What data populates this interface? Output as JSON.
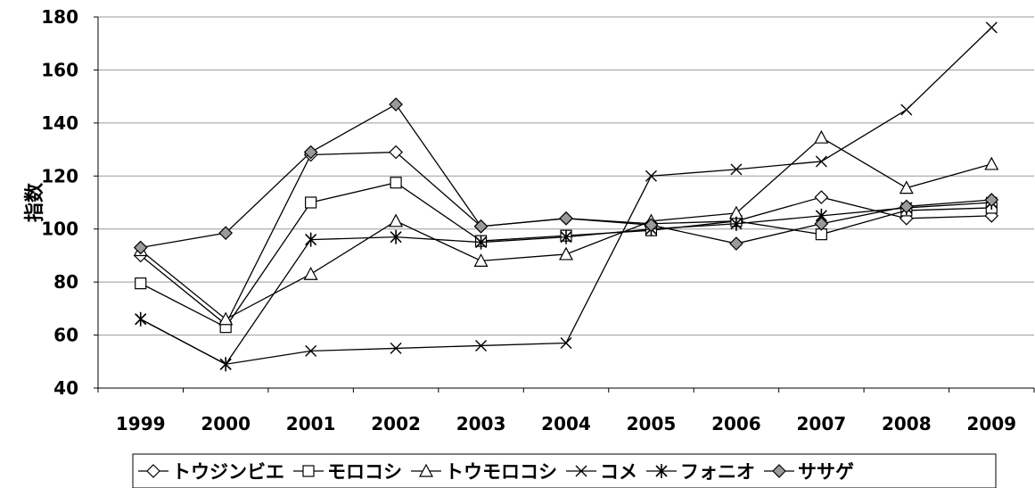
{
  "chart_data": {
    "type": "line",
    "ylabel": "指数",
    "ylim": [
      40,
      180
    ],
    "yticks": [
      40,
      60,
      80,
      100,
      120,
      140,
      160,
      180
    ],
    "categories": [
      "1999",
      "2000",
      "2001",
      "2002",
      "2003",
      "2004",
      "2005",
      "2006",
      "2007",
      "2008",
      "2009"
    ],
    "grid": "horizontal",
    "legend_position": "bottom",
    "series": [
      {
        "name": "トウジンビエ",
        "marker": "diamond-open",
        "values": [
          90,
          64,
          128,
          129,
          101,
          104,
          102,
          103,
          112,
          104,
          105
        ]
      },
      {
        "name": "モロコシ",
        "marker": "square-open",
        "values": [
          79.5,
          63,
          110,
          117.5,
          95.5,
          97.5,
          99.5,
          103,
          98,
          107,
          108
        ]
      },
      {
        "name": "トウモロコシ",
        "marker": "triangle-open",
        "values": [
          92,
          66,
          83,
          103,
          88,
          90.5,
          103,
          106,
          134.5,
          115.5,
          124.5
        ]
      },
      {
        "name": "コメ",
        "marker": "x",
        "values": [
          66,
          49,
          54,
          55,
          56,
          57,
          120,
          122.5,
          125.5,
          145,
          176
        ]
      },
      {
        "name": "フォニオ",
        "marker": "asterisk",
        "values": [
          66,
          49,
          96,
          97,
          95,
          97,
          100,
          102,
          105,
          108,
          110
        ]
      },
      {
        "name": "ササゲ",
        "marker": "diamond-filled",
        "values": [
          93,
          98.5,
          129,
          147,
          101,
          104,
          101.5,
          94.5,
          102,
          108.5,
          111
        ]
      }
    ]
  }
}
